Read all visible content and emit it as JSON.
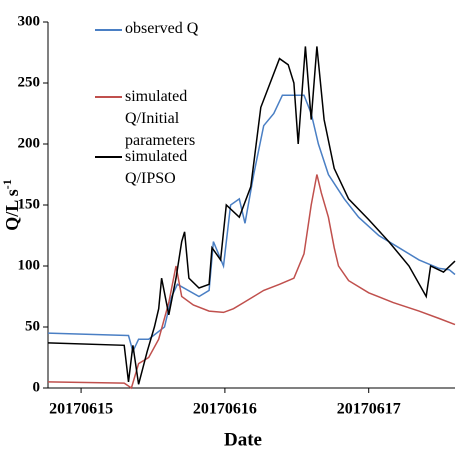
{
  "chart_data": {
    "type": "line",
    "xlabel": "Date",
    "ylabel": {
      "text": "Q/L s",
      "superscript": "-1"
    },
    "xlim": [
      -0.23,
      2.6
    ],
    "xticks": [
      {
        "value": 0,
        "label": "20170615"
      },
      {
        "value": 1,
        "label": "20170616"
      },
      {
        "value": 2,
        "label": "20170617"
      }
    ],
    "ylim": [
      0,
      300
    ],
    "yticks": [
      0,
      50,
      100,
      150,
      200,
      250,
      300
    ],
    "grid": false,
    "series": [
      {
        "name": "observed Q",
        "color": "#4a7fc4",
        "x": [
          -0.23,
          0.33,
          0.36,
          0.4,
          0.47,
          0.58,
          0.63,
          0.67,
          0.82,
          0.89,
          0.92,
          0.99,
          1.04,
          1.1,
          1.14,
          1.2,
          1.27,
          1.34,
          1.4,
          1.55,
          1.6,
          1.65,
          1.72,
          1.83,
          1.93,
          2.07,
          2.21,
          2.35,
          2.49,
          2.56,
          2.6
        ],
        "values": [
          45,
          43,
          30,
          40,
          40,
          50,
          75,
          85,
          75,
          80,
          120,
          100,
          150,
          155,
          135,
          175,
          215,
          225,
          240,
          240,
          225,
          200,
          175,
          155,
          140,
          125,
          115,
          105,
          98,
          97,
          93
        ]
      },
      {
        "name": "simulated Q/Initial parameters",
        "color": "#c0504d",
        "x": [
          -0.23,
          0.3,
          0.35,
          0.4,
          0.47,
          0.54,
          0.61,
          0.66,
          0.7,
          0.78,
          0.89,
          0.99,
          1.06,
          1.13,
          1.2,
          1.27,
          1.38,
          1.48,
          1.55,
          1.6,
          1.64,
          1.67,
          1.72,
          1.76,
          1.79,
          1.86,
          2.0,
          2.17,
          2.35,
          2.49,
          2.6
        ],
        "values": [
          5,
          4,
          0,
          20,
          25,
          40,
          70,
          100,
          75,
          68,
          63,
          62,
          65,
          70,
          75,
          80,
          85,
          90,
          110,
          150,
          175,
          160,
          140,
          115,
          100,
          88,
          78,
          70,
          63,
          57,
          52
        ]
      },
      {
        "name": "simulated Q/IPSO",
        "color": "#000000",
        "x": [
          -0.23,
          0.3,
          0.33,
          0.36,
          0.4,
          0.46,
          0.51,
          0.54,
          0.56,
          0.61,
          0.66,
          0.7,
          0.72,
          0.75,
          0.82,
          0.89,
          0.91,
          0.97,
          1.01,
          1.1,
          1.18,
          1.25,
          1.38,
          1.44,
          1.48,
          1.51,
          1.56,
          1.6,
          1.64,
          1.69,
          1.76,
          1.86,
          2.0,
          2.14,
          2.28,
          2.4,
          2.43,
          2.52,
          2.6
        ],
        "values": [
          37,
          35,
          5,
          35,
          3,
          30,
          50,
          65,
          90,
          60,
          90,
          120,
          128,
          90,
          82,
          85,
          115,
          105,
          150,
          140,
          165,
          230,
          270,
          265,
          250,
          200,
          280,
          220,
          280,
          220,
          180,
          155,
          138,
          120,
          100,
          75,
          100,
          95,
          104
        ]
      }
    ]
  }
}
